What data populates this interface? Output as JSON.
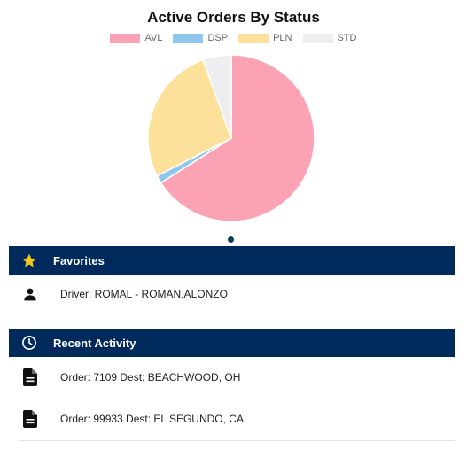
{
  "chart_data": {
    "type": "pie",
    "title": "Active Orders By Status",
    "categories": [
      "AVL",
      "DSP",
      "PLN",
      "STD"
    ],
    "values": [
      66,
      1.5,
      27,
      5.5
    ],
    "colors": [
      "#fba2b4",
      "#8fc6ee",
      "#fde19a",
      "#eeeef0"
    ],
    "legend_position": "top"
  },
  "favorites": {
    "title": "Favorites",
    "icon": "star-icon",
    "items": [
      {
        "icon": "person-icon",
        "text": "Driver: ROMAL - ROMAN,ALONZO"
      }
    ]
  },
  "recent_activity": {
    "title": "Recent Activity",
    "icon": "clock-icon",
    "items": [
      {
        "icon": "document-icon",
        "text": "Order: 7109 Dest: BEACHWOOD, OH"
      },
      {
        "icon": "document-icon",
        "text": "Order: 99933 Dest: EL SEGUNDO, CA"
      }
    ]
  },
  "colors": {
    "header_bg": "#002a5c",
    "star": "#f5c518"
  }
}
